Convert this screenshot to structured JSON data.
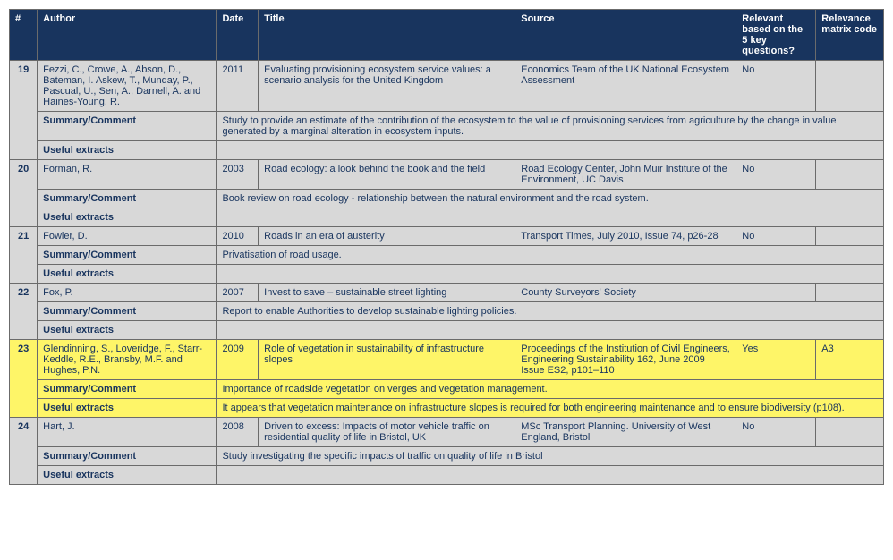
{
  "headers": {
    "num": "#",
    "author": "Author",
    "date": "Date",
    "title": "Title",
    "source": "Source",
    "relevant": "Relevant based on the 5 key questions?",
    "code": "Relevance matrix code"
  },
  "labels": {
    "summary": "Summary/Comment",
    "extracts": "Useful extracts"
  },
  "entries": [
    {
      "num": "19",
      "author": "Fezzi, C., Crowe, A., Abson, D., Bateman, I. Askew, T., Munday, P., Pascual, U., Sen, A., Darnell, A. and Haines-Young, R.",
      "date": "2011",
      "title": "Evaluating provisioning ecosystem service values: a scenario analysis for the United Kingdom",
      "source": "Economics Team of the UK National Ecosystem Assessment",
      "relevant": "No",
      "code": "",
      "summary": "Study to provide an estimate of the contribution of the ecosystem to the value of provisioning services from agriculture by the change in value generated by a marginal alteration in ecosystem inputs.",
      "extracts": "",
      "highlight": false
    },
    {
      "num": "20",
      "author": "Forman, R.",
      "date": "2003",
      "title": "Road ecology: a look behind the book and the field",
      "source": "Road Ecology Center, John Muir Institute of the Environment, UC Davis",
      "relevant": "No",
      "code": "",
      "summary": "Book review on road ecology - relationship between the natural environment and the road system.",
      "extracts": "",
      "highlight": false
    },
    {
      "num": "21",
      "author": "Fowler, D.",
      "date": "2010",
      "title": "Roads in an era of austerity",
      "source": "Transport Times, July 2010, Issue 74, p26-28",
      "relevant": "No",
      "code": "",
      "summary": "Privatisation of road usage.",
      "extracts": "",
      "highlight": false
    },
    {
      "num": "22",
      "author": "Fox, P.",
      "date": "2007",
      "title": "Invest to save – sustainable street lighting",
      "source": "County Surveyors' Society",
      "relevant": "",
      "code": "",
      "summary": "Report to enable Authorities to develop sustainable lighting policies.",
      "extracts": "",
      "highlight": false
    },
    {
      "num": "23",
      "author": "Glendinning, S., Loveridge, F.,\nStarr-Keddle, R.E., Bransby, M.F. and Hughes, P.N.",
      "date": "2009",
      "title": "Role of vegetation in sustainability of infrastructure slopes",
      "source": "Proceedings of the Institution of Civil Engineers, Engineering Sustainability 162, June 2009 Issue ES2, p101–110",
      "relevant": "Yes",
      "code": "A3",
      "summary": "Importance of roadside vegetation on verges and vegetation management.",
      "extracts": "It appears that vegetation maintenance on infrastructure slopes is required for both engineering maintenance and to ensure biodiversity (p108).",
      "highlight": true
    },
    {
      "num": "24",
      "author": "Hart, J.",
      "date": "2008",
      "title": "Driven to excess: Impacts of motor vehicle traffic on residential quality of life in Bristol, UK",
      "source": "MSc Transport Planning. University of West England, Bristol",
      "relevant": "No",
      "code": "",
      "summary": "Study investigating the specific impacts of traffic on quality of life in Bristol",
      "extracts": "",
      "highlight": false
    }
  ],
  "style": {
    "header_bg": "#18345e",
    "header_fg": "#ffffff",
    "cell_bg": "#d8d8d8",
    "highlight_bg": "#fef568",
    "border": "#6b6b6b",
    "font_size": 11
  }
}
